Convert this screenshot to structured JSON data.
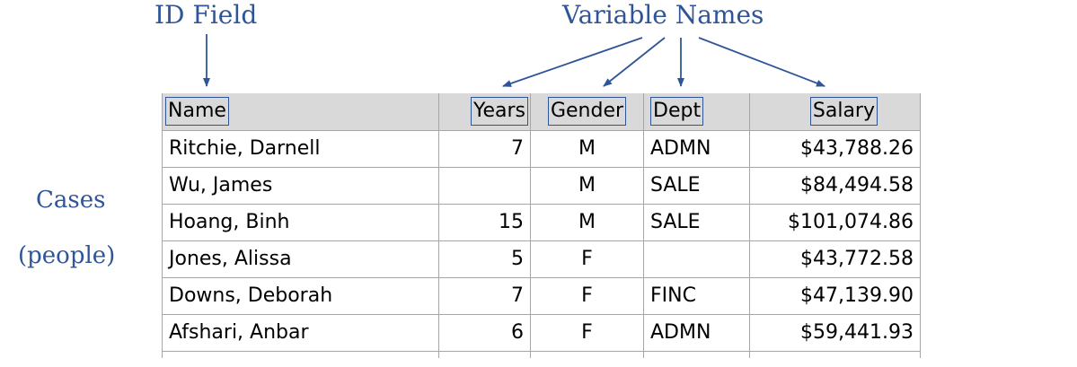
{
  "labels": {
    "id_field": "ID Field",
    "variable_names": "Variable Names",
    "cases": "Cases",
    "people": "(people)"
  },
  "table": {
    "headers": {
      "name": "Name",
      "years": "Years",
      "gender": "Gender",
      "dept": "Dept",
      "salary": "Salary"
    },
    "rows": [
      {
        "name": "Ritchie, Darnell",
        "years": "7",
        "gender": "M",
        "dept": "ADMN",
        "salary": "$43,788.26"
      },
      {
        "name": "Wu, James",
        "years": "",
        "gender": "M",
        "dept": "SALE",
        "salary": "$84,494.58"
      },
      {
        "name": "Hoang, Binh",
        "years": "15",
        "gender": "M",
        "dept": "SALE",
        "salary": "$101,074.86"
      },
      {
        "name": "Jones, Alissa",
        "years": "5",
        "gender": "F",
        "dept": "",
        "salary": "$43,772.58"
      },
      {
        "name": "Downs, Deborah",
        "years": "7",
        "gender": "F",
        "dept": "FINC",
        "salary": "$47,139.90"
      },
      {
        "name": "Afshari, Anbar",
        "years": "6",
        "gender": "F",
        "dept": "ADMN",
        "salary": "$59,441.93"
      }
    ]
  },
  "colors": {
    "annotation": "#2f5597",
    "header_bg": "#d9d9d9",
    "grid": "#a6a6a6"
  }
}
